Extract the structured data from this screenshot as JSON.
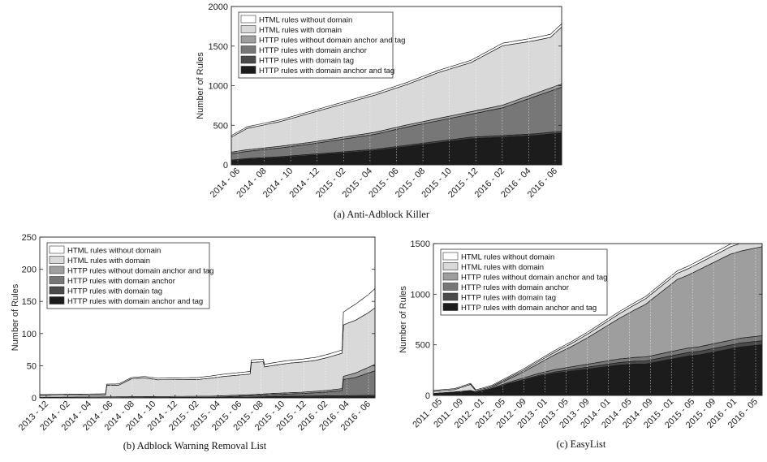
{
  "chart_data": [
    {
      "type": "area",
      "stacked": true,
      "caption": "(a)  Anti-Adblock Killer",
      "ylabel": "Number of Rules",
      "ylim": [
        0,
        2000
      ],
      "yticks": [
        0,
        500,
        1000,
        1500,
        2000
      ],
      "xticks": [
        "2014 - 06",
        "2014 - 08",
        "2014 - 10",
        "2014 - 12",
        "2015 - 02",
        "2015 - 04",
        "2015 - 06",
        "2015 - 08",
        "2015 - 10",
        "2015 - 12",
        "2016 - 02",
        "2016 - 04",
        "2016 - 06"
      ],
      "legend_position": "top-left",
      "series": [
        {
          "name": "HTTP rules with domain anchor and tag",
          "color": "#1c1c1c",
          "values": [
            [
              0,
              50
            ],
            [
              1,
              70
            ],
            [
              3,
              90
            ],
            [
              5,
              120
            ],
            [
              7,
              150
            ],
            [
              9,
              180
            ],
            [
              11,
              230
            ],
            [
              13,
              280
            ],
            [
              15,
              330
            ],
            [
              17,
              350
            ],
            [
              19,
              370
            ],
            [
              20,
              390
            ],
            [
              20.7,
              400
            ]
          ]
        },
        {
          "name": "HTTP rules with domain tag",
          "color": "#4a4a4a",
          "values": [
            [
              0,
              10
            ],
            [
              3,
              12
            ],
            [
              8,
              15
            ],
            [
              12,
              18
            ],
            [
              16,
              20
            ],
            [
              20.7,
              22
            ]
          ]
        },
        {
          "name": "HTTP rules with domain anchor",
          "color": "#777777",
          "values": [
            [
              0,
              80
            ],
            [
              1,
              90
            ],
            [
              3,
              110
            ],
            [
              5,
              130
            ],
            [
              7,
              160
            ],
            [
              9,
              190
            ],
            [
              11,
              230
            ],
            [
              13,
              260
            ],
            [
              15,
              290
            ],
            [
              17,
              350
            ],
            [
              19,
              470
            ],
            [
              20,
              520
            ],
            [
              20.7,
              560
            ]
          ]
        },
        {
          "name": "HTTP rules without domain anchor and tag",
          "color": "#9e9e9e",
          "values": [
            [
              0,
              20
            ],
            [
              4,
              22
            ],
            [
              8,
              25
            ],
            [
              12,
              28
            ],
            [
              16,
              32
            ],
            [
              20.7,
              40
            ]
          ]
        },
        {
          "name": "HTML rules with domain",
          "color": "#d9d9d9",
          "values": [
            [
              0,
              190
            ],
            [
              1,
              270
            ],
            [
              3,
              310
            ],
            [
              5,
              370
            ],
            [
              7,
              420
            ],
            [
              9,
              470
            ],
            [
              11,
              510
            ],
            [
              13,
              580
            ],
            [
              15,
              620
            ],
            [
              17,
              750
            ],
            [
              19,
              670
            ],
            [
              20,
              640
            ],
            [
              20.7,
              720
            ]
          ]
        },
        {
          "name": "HTML rules without domain",
          "color": "#ffffff",
          "values": [
            [
              0,
              20
            ],
            [
              5,
              22
            ],
            [
              10,
              25
            ],
            [
              15,
              28
            ],
            [
              20.7,
              40
            ]
          ]
        }
      ]
    },
    {
      "type": "area",
      "stacked": true,
      "caption": "(b)  Adblock Warning Removal List",
      "ylabel": "Number of Rules",
      "ylim": [
        0,
        250
      ],
      "yticks": [
        0,
        50,
        100,
        150,
        200,
        250
      ],
      "xticks": [
        "2013 - 12",
        "2014 - 02",
        "2014 - 04",
        "2014 - 06",
        "2014 - 08",
        "2014 - 10",
        "2014 - 12",
        "2015 - 02",
        "2015 - 04",
        "2015 - 06",
        "2015 - 08",
        "2015 - 10",
        "2015 - 12",
        "2016 - 02",
        "2016 - 04",
        "2016 - 06"
      ],
      "legend_position": "top-left",
      "series": [
        {
          "name": "HTTP rules with domain anchor and tag",
          "color": "#1c1c1c",
          "values": [
            [
              0,
              0
            ],
            [
              14,
              1
            ],
            [
              25.5,
              2
            ]
          ]
        },
        {
          "name": "HTTP rules with domain tag",
          "color": "#4a4a4a",
          "values": [
            [
              0,
              0
            ],
            [
              16,
              0
            ],
            [
              18,
              1
            ],
            [
              25.5,
              2
            ]
          ]
        },
        {
          "name": "HTTP rules with domain anchor",
          "color": "#777777",
          "values": [
            [
              0,
              0
            ],
            [
              13,
              0
            ],
            [
              16,
              2
            ],
            [
              20,
              4
            ],
            [
              22,
              6
            ],
            [
              23,
              8
            ],
            [
              23.1,
              25
            ],
            [
              24,
              28
            ],
            [
              25.5,
              38
            ]
          ]
        },
        {
          "name": "HTTP rules without domain anchor and tag",
          "color": "#9e9e9e",
          "values": [
            [
              0,
              1
            ],
            [
              20,
              2
            ],
            [
              23,
              3
            ],
            [
              23.1,
              5
            ],
            [
              25.5,
              10
            ]
          ]
        },
        {
          "name": "HTML rules with domain",
          "color": "#d9d9d9",
          "values": [
            [
              0,
              3
            ],
            [
              3,
              3
            ],
            [
              5,
              3
            ],
            [
              5.1,
              18
            ],
            [
              6,
              18
            ],
            [
              7,
              28
            ],
            [
              8,
              29
            ],
            [
              9,
              26
            ],
            [
              12,
              26
            ],
            [
              14,
              30
            ],
            [
              16,
              32
            ],
            [
              16.1,
              50
            ],
            [
              17,
              50
            ],
            [
              17.1,
              42
            ],
            [
              19,
              46
            ],
            [
              21,
              48
            ],
            [
              23,
              55
            ],
            [
              23.1,
              80
            ],
            [
              24,
              82
            ],
            [
              25,
              85
            ],
            [
              25.5,
              88
            ]
          ]
        },
        {
          "name": "HTML rules without domain",
          "color": "#ffffff",
          "values": [
            [
              0,
              1
            ],
            [
              7,
              2
            ],
            [
              16,
              4
            ],
            [
              17,
              4
            ],
            [
              23,
              5
            ],
            [
              23.1,
              20
            ],
            [
              24,
              25
            ],
            [
              25,
              28
            ],
            [
              25.5,
              30
            ]
          ]
        }
      ]
    },
    {
      "type": "area",
      "stacked": true,
      "caption": "(c)  EasyList",
      "ylabel": "Number of Rules",
      "ylim": [
        0,
        1500
      ],
      "yticks": [
        0,
        500,
        1000,
        1500
      ],
      "xticks": [
        "2011 - 05",
        "2011 - 09",
        "2012 - 01",
        "2012 - 05",
        "2012 - 09",
        "2013 - 01",
        "2013 - 05",
        "2013 - 09",
        "2014 - 01",
        "2014 - 05",
        "2014 - 09",
        "2015 - 01",
        "2015 - 05",
        "2015 - 09",
        "2016 - 01",
        "2016 - 05"
      ],
      "legend_position": "top-left",
      "series": [
        {
          "name": "HTTP rules with domain anchor and tag",
          "color": "#1c1c1c",
          "values": [
            [
              0,
              20
            ],
            [
              4,
              30
            ],
            [
              7,
              40
            ],
            [
              8,
              25
            ],
            [
              11,
              60
            ],
            [
              14,
              110
            ],
            [
              17,
              150
            ],
            [
              20,
              190
            ],
            [
              23,
              220
            ],
            [
              26,
              240
            ],
            [
              29,
              260
            ],
            [
              32,
              280
            ],
            [
              35,
              300
            ],
            [
              38,
              310
            ],
            [
              40,
              310
            ],
            [
              41,
              320
            ],
            [
              42,
              330
            ],
            [
              44,
              350
            ],
            [
              46,
              370
            ],
            [
              48,
              390
            ],
            [
              50,
              400
            ],
            [
              52,
              420
            ],
            [
              54,
              440
            ],
            [
              56,
              460
            ],
            [
              58,
              480
            ],
            [
              60,
              490
            ],
            [
              62,
              500
            ]
          ]
        },
        {
          "name": "HTTP rules with domain tag",
          "color": "#4a4a4a",
          "values": [
            [
              0,
              0
            ],
            [
              10,
              2
            ],
            [
              20,
              10
            ],
            [
              30,
              20
            ],
            [
              40,
              30
            ],
            [
              50,
              35
            ],
            [
              62,
              40
            ]
          ]
        },
        {
          "name": "HTTP rules with domain anchor",
          "color": "#777777",
          "values": [
            [
              0,
              0
            ],
            [
              10,
              5
            ],
            [
              20,
              20
            ],
            [
              30,
              30
            ],
            [
              40,
              40
            ],
            [
              50,
              45
            ],
            [
              62,
              50
            ]
          ]
        },
        {
          "name": "HTTP rules without domain anchor and tag",
          "color": "#9e9e9e",
          "values": [
            [
              0,
              0
            ],
            [
              8,
              5
            ],
            [
              11,
              10
            ],
            [
              14,
              30
            ],
            [
              17,
              60
            ],
            [
              20,
              100
            ],
            [
              23,
              150
            ],
            [
              26,
              200
            ],
            [
              29,
              260
            ],
            [
              32,
              330
            ],
            [
              35,
              400
            ],
            [
              38,
              470
            ],
            [
              40,
              520
            ],
            [
              41,
              550
            ],
            [
              42,
              580
            ],
            [
              44,
              640
            ],
            [
              46,
              700
            ],
            [
              48,
              720
            ],
            [
              50,
              760
            ],
            [
              52,
              790
            ],
            [
              54,
              820
            ],
            [
              56,
              850
            ],
            [
              58,
              860
            ],
            [
              60,
              870
            ],
            [
              62,
              880
            ]
          ]
        },
        {
          "name": "HTML rules with domain",
          "color": "#d9d9d9",
          "values": [
            [
              0,
              20
            ],
            [
              4,
              22
            ],
            [
              7,
              60
            ],
            [
              8,
              10
            ],
            [
              11,
              10
            ],
            [
              14,
              12
            ],
            [
              17,
              15
            ],
            [
              20,
              20
            ],
            [
              23,
              25
            ],
            [
              26,
              30
            ],
            [
              29,
              35
            ],
            [
              32,
              40
            ],
            [
              35,
              45
            ],
            [
              40,
              55
            ],
            [
              45,
              60
            ],
            [
              50,
              65
            ],
            [
              55,
              70
            ],
            [
              62,
              90
            ]
          ]
        },
        {
          "name": "HTML rules without domain",
          "color": "#ffffff",
          "values": [
            [
              0,
              10
            ],
            [
              10,
              10
            ],
            [
              20,
              15
            ],
            [
              30,
              20
            ],
            [
              40,
              22
            ],
            [
              50,
              25
            ],
            [
              62,
              30
            ]
          ]
        }
      ]
    }
  ]
}
